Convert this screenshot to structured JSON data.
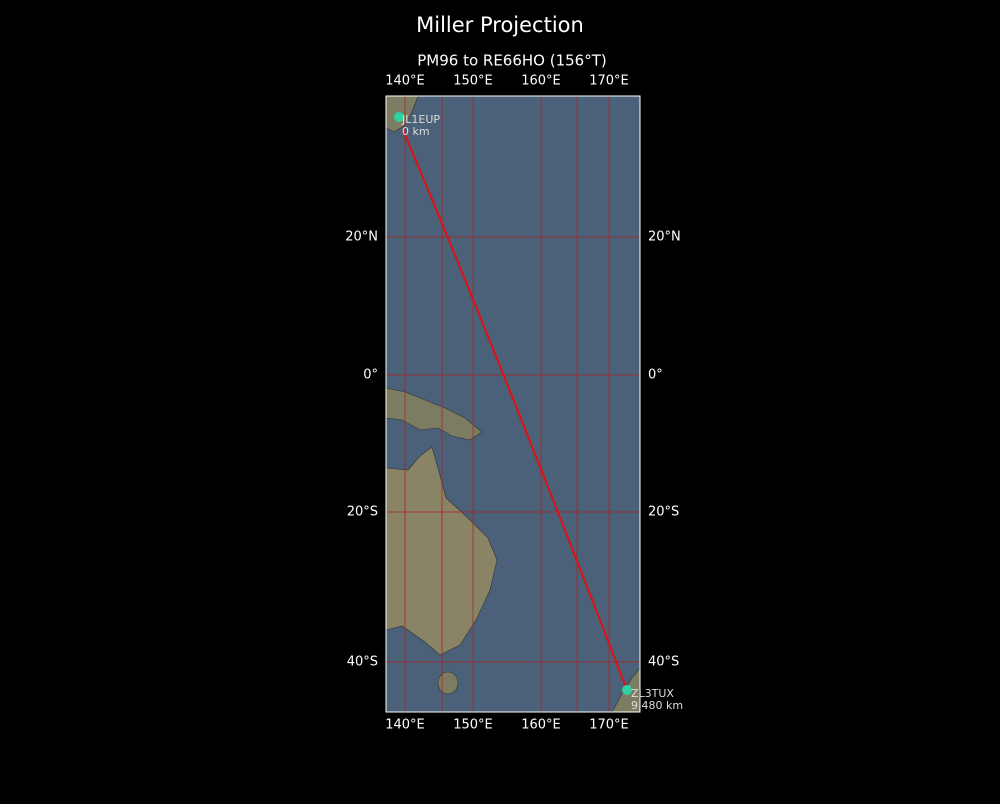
{
  "title": "Miller Projection",
  "subtitle": "PM96 to RE66HO (156°T)",
  "lon_ticks": [
    "140°E",
    "150°E",
    "160°E",
    "170°E"
  ],
  "lat_ticks": [
    "20°N",
    "0°",
    "20°S",
    "40°S"
  ],
  "stations": [
    {
      "call": "JL1EUP",
      "distance": "0 km"
    },
    {
      "call": "ZL3TUX",
      "distance": "9,480 km"
    }
  ]
}
